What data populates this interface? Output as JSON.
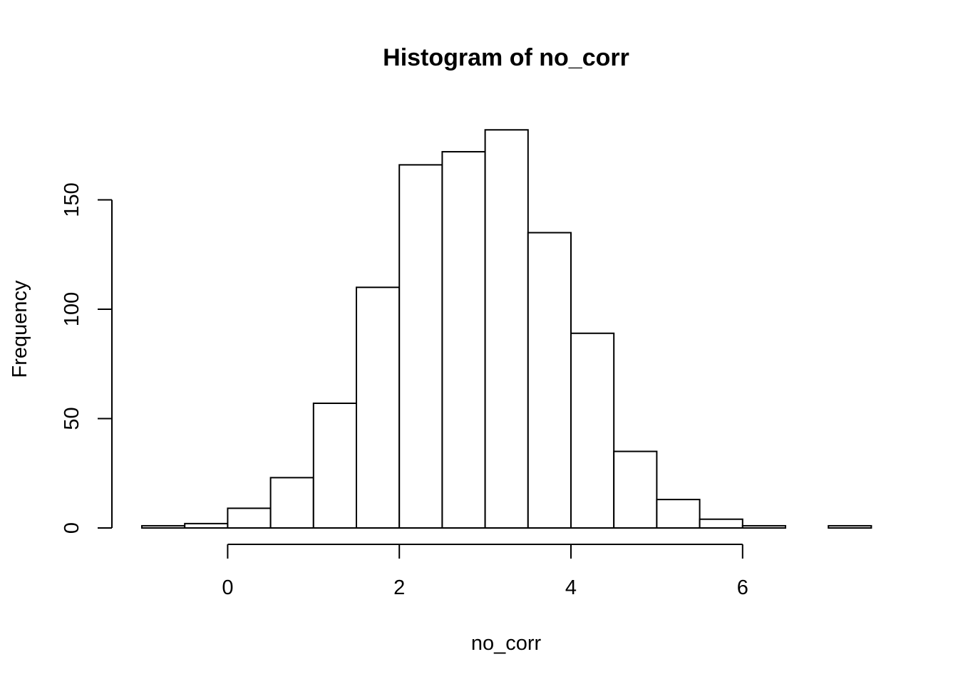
{
  "chart_data": {
    "type": "bar",
    "title": "Histogram of no_corr",
    "xlabel": "no_corr",
    "ylabel": "Frequency",
    "bin_edges": [
      -1,
      -0.5,
      0,
      0.5,
      1,
      1.5,
      2,
      2.5,
      3,
      3.5,
      4,
      4.5,
      5,
      5.5,
      6,
      6.5,
      7,
      7.5
    ],
    "values": [
      1,
      2,
      9,
      23,
      57,
      110,
      166,
      172,
      182,
      135,
      89,
      35,
      13,
      4,
      1,
      0,
      1
    ],
    "xlim": [
      -1,
      7.5
    ],
    "ylim": [
      0,
      182
    ],
    "x_ticks": [
      0,
      2,
      4,
      6
    ],
    "x_tick_labels": [
      "0",
      "2",
      "4",
      "6"
    ],
    "y_ticks": [
      0,
      50,
      100,
      150
    ],
    "y_tick_labels": [
      "0",
      "50",
      "100",
      "150"
    ],
    "grid": false,
    "bar_fill": "#ffffff",
    "bar_stroke": "#000000"
  }
}
